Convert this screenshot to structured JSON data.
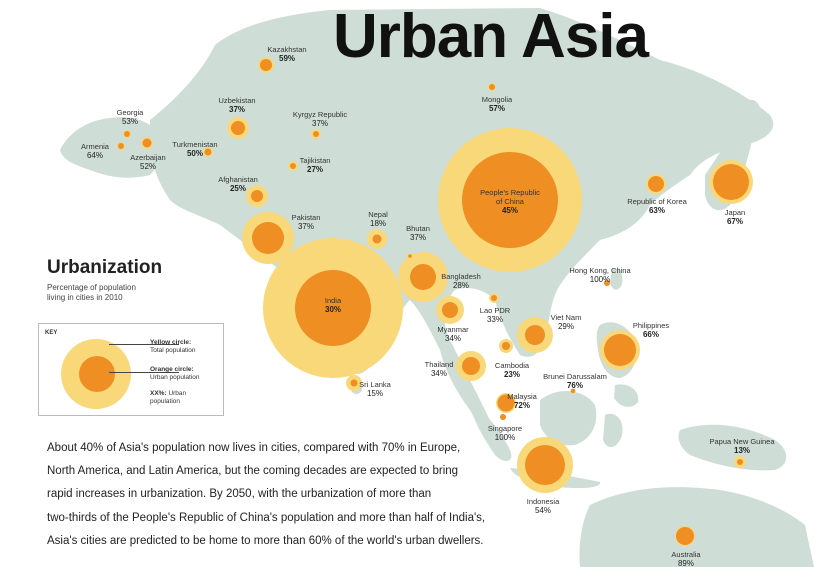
{
  "title": "Urban Asia",
  "legend": {
    "heading": "Urbanization",
    "subtitle_lines": [
      "Percentage of population",
      "living in cities in 2010"
    ],
    "key_label": "KEY",
    "yellow_title": "Yellow circle:",
    "yellow_desc": "Total population",
    "orange_title": "Orange circle:",
    "orange_desc": "Urban population",
    "pct_title": "XX%:",
    "pct_desc": "Urban",
    "pct_desc2": "population"
  },
  "description_lines": [
    "About 40% of Asia's population now lives in cities,  compared with 70% in Europe,",
    "North America, and Latin America, but the coming decades are expected to bring",
    "rapid increases in urbanization. By 2050, with the urbanization of more than",
    "two-thirds of the People's Republic of China's population and more than half of India's,",
    "Asia's cities are predicted to be home to more than 60% of the world's urban dwellers."
  ],
  "colors": {
    "land": "#cfddd7",
    "sea": "#ffffff",
    "total_circle": "#f8d879",
    "urban_circle": "#ee8e23",
    "title": "#111111"
  },
  "countries": [
    {
      "name": "Kazakhstan",
      "pct": "59%",
      "bold": true
    },
    {
      "name": "Mongolia",
      "pct": "57%",
      "bold": true
    },
    {
      "name": "Georgia",
      "pct": "53%",
      "bold": false
    },
    {
      "name": "Uzbekistan",
      "pct": "37%",
      "bold": true
    },
    {
      "name": "Kyrgyz Republic",
      "pct": "37%",
      "bold": false
    },
    {
      "name": "Armenia",
      "pct": "64%",
      "bold": false
    },
    {
      "name": "Turkmenistan",
      "pct": "50%",
      "bold": true
    },
    {
      "name": "Azerbaijan",
      "pct": "52%",
      "bold": false
    },
    {
      "name": "Tajikistan",
      "pct": "27%",
      "bold": true
    },
    {
      "name": "Afghanistan",
      "pct": "25%",
      "bold": true
    },
    {
      "name": "People's Republic",
      "name2": "of China",
      "pct": "45%",
      "bold": true
    },
    {
      "name": "Republic of Korea",
      "pct": "63%",
      "bold": true
    },
    {
      "name": "Japan",
      "pct": "67%",
      "bold": true
    },
    {
      "name": "Pakistan",
      "pct": "37%",
      "bold": false
    },
    {
      "name": "Nepal",
      "pct": "18%",
      "bold": false
    },
    {
      "name": "Bhutan",
      "pct": "37%",
      "bold": false
    },
    {
      "name": "Bangladesh",
      "pct": "28%",
      "bold": false
    },
    {
      "name": "Hong Kong, China",
      "pct": "100%",
      "bold": false
    },
    {
      "name": "India",
      "pct": "30%",
      "bold": true
    },
    {
      "name": "Lao PDR",
      "pct": "33%",
      "bold": false
    },
    {
      "name": "Myanmar",
      "pct": "34%",
      "bold": false
    },
    {
      "name": "Viet Nam",
      "pct": "29%",
      "bold": false
    },
    {
      "name": "Philippines",
      "pct": "66%",
      "bold": true
    },
    {
      "name": "Thailand",
      "pct": "34%",
      "bold": false
    },
    {
      "name": "Cambodia",
      "pct": "23%",
      "bold": true
    },
    {
      "name": "Brunei Darussalam",
      "pct": "76%",
      "bold": true
    },
    {
      "name": "Sri Lanka",
      "pct": "15%",
      "bold": false
    },
    {
      "name": "Malaysia",
      "pct": "72%",
      "bold": true
    },
    {
      "name": "Singapore",
      "pct": "100%",
      "bold": false
    },
    {
      "name": "Papua New Guinea",
      "pct": "13%",
      "bold": true
    },
    {
      "name": "Indonesia",
      "pct": "54%",
      "bold": false
    },
    {
      "name": "Australia",
      "pct": "89%",
      "bold": false
    }
  ]
}
